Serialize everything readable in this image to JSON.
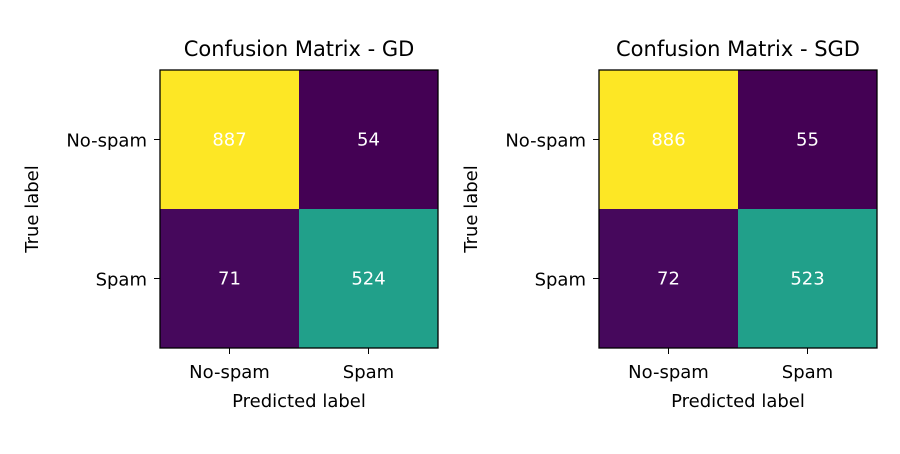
{
  "chart_data": [
    {
      "type": "heatmap",
      "title": "Confusion Matrix - GD",
      "xlabel": "Predicted label",
      "ylabel": "True label",
      "x_categories": [
        "No-spam",
        "Spam"
      ],
      "y_categories": [
        "No-spam",
        "Spam"
      ],
      "values": [
        [
          887,
          54
        ],
        [
          71,
          524
        ]
      ],
      "cell_colors": [
        [
          "#fde725",
          "#440154"
        ],
        [
          "#46085c",
          "#21a08a"
        ]
      ],
      "text_color": "#ffffff"
    },
    {
      "type": "heatmap",
      "title": "Confusion Matrix - SGD",
      "xlabel": "Predicted label",
      "ylabel": "True label",
      "x_categories": [
        "No-spam",
        "Spam"
      ],
      "y_categories": [
        "No-spam",
        "Spam"
      ],
      "values": [
        [
          886,
          55
        ],
        [
          72,
          523
        ]
      ],
      "cell_colors": [
        [
          "#fde725",
          "#440154"
        ],
        [
          "#46085c",
          "#21a08a"
        ]
      ],
      "text_color": "#ffffff"
    }
  ]
}
